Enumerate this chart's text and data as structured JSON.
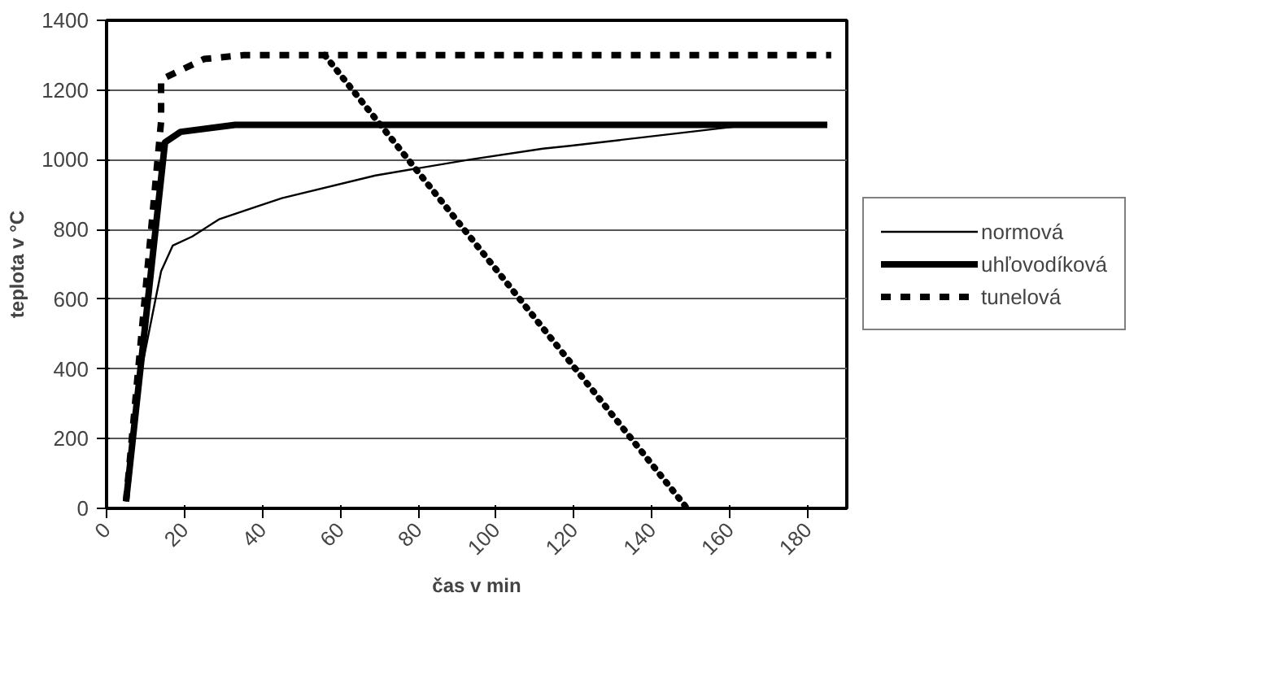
{
  "chart_data": {
    "type": "line",
    "xlabel": "čas v min",
    "ylabel": "teplota v °C",
    "xlim": [
      0,
      190
    ],
    "ylim": [
      0,
      1400
    ],
    "xticks": [
      0,
      20,
      40,
      60,
      80,
      100,
      120,
      140,
      160,
      180
    ],
    "yticks": [
      0,
      200,
      400,
      600,
      800,
      1000,
      1200,
      1400
    ],
    "grid": "y",
    "legend": "right",
    "marker": "none",
    "series": [
      {
        "name": "normová",
        "color": "#000000",
        "line_style": "solid",
        "x": [
          5,
          9,
          14,
          17,
          22,
          29,
          45,
          69,
          93,
          112,
          119,
          165,
          185
        ],
        "values": [
          20,
          400,
          680,
          754,
          780,
          830,
          890,
          955,
          1000,
          1032,
          1040,
          1100,
          1100
        ]
      },
      {
        "name": "uhľovodíková",
        "color": "#000000",
        "line_style": "solid",
        "x": [
          5,
          15,
          19,
          33,
          185
        ],
        "values": [
          20,
          1050,
          1080,
          1100,
          1100
        ]
      },
      {
        "name": "tunelová",
        "color": "#000000",
        "line_style": "dashed",
        "x": [
          5,
          14,
          14,
          25,
          35,
          186
        ],
        "values": [
          20,
          1110,
          1230,
          1289,
          1300,
          1300
        ]
      },
      {
        "color": "#000000",
        "line_style": "dotted",
        "x": [
          56,
          149
        ],
        "values": [
          1300,
          0
        ]
      }
    ]
  }
}
